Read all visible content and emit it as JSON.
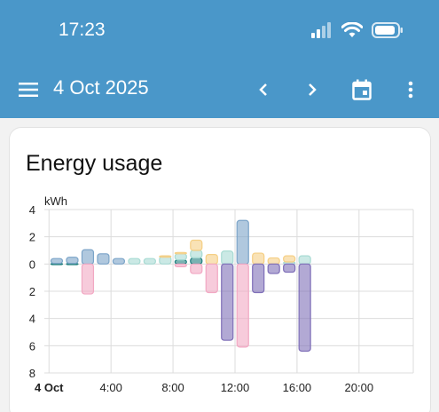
{
  "status_bar": {
    "time": "17:23"
  },
  "toolbar": {
    "date": "4 Oct 2025",
    "icons": [
      "menu-icon",
      "chevron-left-icon",
      "chevron-right-icon",
      "calendar-icon",
      "more-vert-icon"
    ],
    "background_color": "#4a97c9"
  },
  "card": {
    "title": "Energy usage"
  },
  "chart_data": {
    "type": "bar",
    "title": "Energy usage",
    "ylabel": "kWh",
    "ylim": [
      -8,
      4
    ],
    "y_ticks": [
      4,
      2,
      0,
      -2,
      -4,
      -6,
      -8
    ],
    "y_tick_labels": [
      "4",
      "2",
      "0",
      "2",
      "4",
      "6",
      "8"
    ],
    "x_tick_labels": [
      "4 Oct",
      "4:00",
      "8:00",
      "12:00",
      "16:00",
      "20:00"
    ],
    "x_tick_hours": [
      0,
      4,
      8,
      12,
      16,
      20
    ],
    "xlim_hours": [
      -0.3,
      23.5
    ],
    "grid": true,
    "hours": [
      0,
      1,
      2,
      3,
      4,
      5,
      6,
      7,
      8,
      9,
      10,
      11,
      12,
      13,
      14,
      15,
      16
    ],
    "series": [
      {
        "color": "#1f7f7f",
        "values": [
          0.05,
          0.05,
          0,
          0,
          0,
          0,
          0,
          0,
          0.3,
          0.45,
          0,
          0,
          0,
          0,
          0,
          0,
          0
        ]
      },
      {
        "color": "#7ba4c8",
        "values": [
          0.35,
          0.45,
          1.05,
          0.75,
          0.4,
          0,
          0,
          0,
          0,
          0,
          0,
          0,
          3.2,
          0,
          0,
          0,
          0
        ]
      },
      {
        "color": "#a8dbd3",
        "values": [
          0,
          0,
          0,
          0,
          0,
          0.4,
          0.4,
          0.55,
          0.45,
          0.55,
          0,
          0.95,
          0,
          0,
          0,
          0.15,
          0.6
        ]
      },
      {
        "color": "#f5cf85",
        "values": [
          0,
          0,
          0,
          0,
          0,
          0,
          0,
          0.05,
          0.1,
          0.75,
          0.7,
          0,
          0,
          0.8,
          0.45,
          0.45,
          0
        ]
      },
      {
        "color": "#f2a8c3",
        "values": [
          0,
          0,
          -2.2,
          0,
          0,
          0,
          0,
          0,
          -0.2,
          -0.7,
          -2.1,
          0,
          -6.1,
          0,
          0,
          0,
          0
        ]
      },
      {
        "color": "#7f6fb8",
        "values": [
          0,
          0,
          0,
          0,
          0,
          0,
          0,
          0,
          0,
          0,
          0,
          -5.6,
          0,
          -2.1,
          -0.7,
          -0.6,
          -6.4
        ]
      }
    ]
  }
}
